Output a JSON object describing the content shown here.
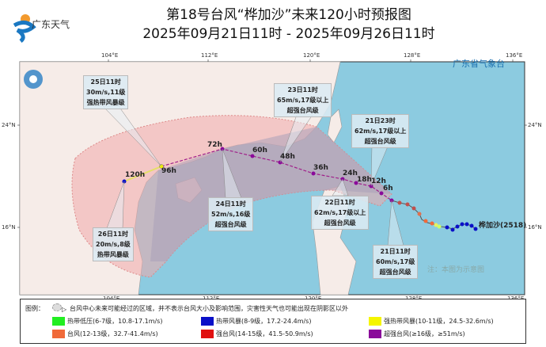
{
  "header": {
    "title": "第18号台风“桦加沙”未来120小时预报图",
    "period": "2025年09月21日11时 - 2025年09月26日11时",
    "logo_text": "广东天气",
    "agency": "广东省气象台"
  },
  "axes": {
    "lon_ticks": [
      "104°E",
      "112°E",
      "120°E",
      "128°E",
      "136°E"
    ],
    "lat_ticks": [
      "24°N",
      "16°N"
    ]
  },
  "typhoon": {
    "name": "桦加沙(2518)",
    "note": "注：本图为示意图",
    "forecast_points": [
      "120h",
      "96h",
      "72h",
      "60h",
      "48h",
      "36h",
      "24h",
      "18h",
      "12h",
      "6h"
    ],
    "labels": [
      {
        "time": "25日11时",
        "wind": "30m/s,11级",
        "level": "强热带风暴级"
      },
      {
        "time": "23日11时",
        "wind": "65m/s,17级以上",
        "level": "超强台风级"
      },
      {
        "time": "21日23时",
        "wind": "62m/s,17级以上",
        "level": "超强台风级"
      },
      {
        "time": "24日11时",
        "wind": "52m/s,16级",
        "level": "超强台风级"
      },
      {
        "time": "22日11时",
        "wind": "62m/s,17级以上",
        "level": "超强台风级"
      },
      {
        "time": "21日11时",
        "wind": "60m/s,17级",
        "level": "超强台风级"
      },
      {
        "time": "26日11时",
        "wind": "20m/s,8级",
        "level": "热带风暴级"
      }
    ]
  },
  "legend": {
    "label": "图例：",
    "area_note": "台风中心未来可能经过的区域，并不表示台风大小及影响范围，灾害性天气也可能出现在阴影区以外",
    "items": [
      {
        "label": "热带低压(6-7级，10.8-17.1m/s)",
        "color": "#22ee22"
      },
      {
        "label": "热带风暴(8-9级，17.2-24.4m/s)",
        "color": "#0a10c8"
      },
      {
        "label": "强热带风暴(10-11级，24.5-32.6m/s)",
        "color": "#f5f500"
      },
      {
        "label": "台风(12-13级，32.7-41.4m/s)",
        "color": "#f06a3a"
      },
      {
        "label": "强台风(14-15级，41.5-50.9m/s)",
        "color": "#e01010"
      },
      {
        "label": "超强台风(≥16级，≥51m/s)",
        "color": "#8a0a9a"
      }
    ]
  }
}
